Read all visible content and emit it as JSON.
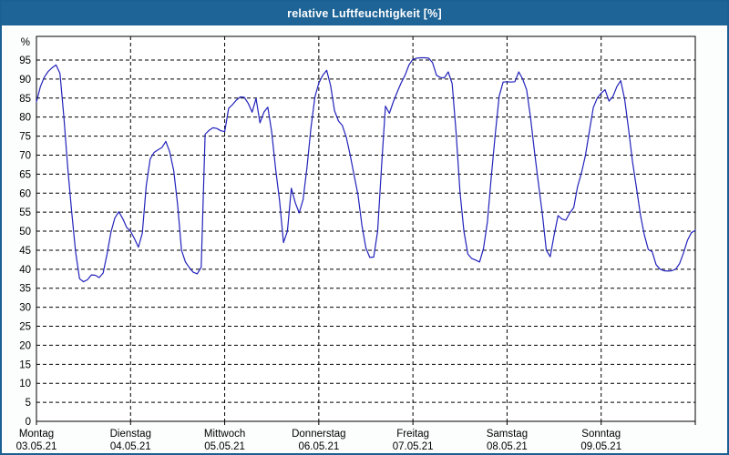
{
  "window": {
    "title": "relative Luftfeuchtigkeit [%]"
  },
  "colors": {
    "titlebar_bg": "#1e6496",
    "titlebar_text": "#ffffff",
    "frame": "#1b6092",
    "content_bg": "#fcfdfd",
    "plot_bg": "#ffffff",
    "grid": "#000000",
    "axis": "#000000",
    "label": "#000000",
    "line": "#2222bb"
  },
  "chart_data": {
    "type": "line",
    "title": "relative Luftfeuchtigkeit [%]",
    "xlabel": "",
    "ylabel": "%",
    "ylim": [
      0,
      101
    ],
    "y_ticks": [
      0,
      5,
      10,
      15,
      20,
      25,
      30,
      35,
      40,
      45,
      50,
      55,
      60,
      65,
      70,
      75,
      80,
      85,
      90,
      95
    ],
    "grid": "dashed",
    "legend": "none",
    "x_axis": {
      "points_per_day": 24,
      "days": [
        {
          "weekday": "Montag",
          "date": "03.05.21"
        },
        {
          "weekday": "Dienstag",
          "date": "04.05.21"
        },
        {
          "weekday": "Mittwoch",
          "date": "05.05.21"
        },
        {
          "weekday": "Donnerstag",
          "date": "06.05.21"
        },
        {
          "weekday": "Freitag",
          "date": "07.05.21"
        },
        {
          "weekday": "Samstag",
          "date": "08.05.21"
        },
        {
          "weekday": "Sonntag",
          "date": "09.05.21"
        }
      ]
    },
    "series": [
      {
        "name": "relative Luftfeuchtigkeit [%]",
        "values": [
          84,
          88,
          90.5,
          92,
          93,
          93.7,
          91.5,
          80,
          66.5,
          55,
          44.5,
          37.5,
          36.7,
          37.2,
          38.5,
          38.4,
          37.8,
          39,
          44,
          49.8,
          53.5,
          55.1,
          53.3,
          51,
          50,
          48,
          45.8,
          49.5,
          62,
          69,
          70.7,
          71.4,
          72,
          73.6,
          70.8,
          66,
          57,
          45,
          41.9,
          40.4,
          39.2,
          38.8,
          40.5,
          75.5,
          76.5,
          77.2,
          77,
          76.4,
          76.2,
          82.3,
          83.3,
          84.5,
          85.3,
          85.2,
          83.6,
          81.3,
          84.9,
          78.5,
          81.3,
          82.6,
          76,
          66.3,
          58,
          47,
          50,
          61.3,
          57.5,
          54.8,
          58.3,
          66.8,
          77.3,
          85.3,
          89,
          91,
          92.3,
          88.3,
          81.7,
          79,
          77.8,
          74.7,
          70,
          64.7,
          59.5,
          51.5,
          45.6,
          43.1,
          43.2,
          50,
          67,
          82.9,
          81,
          84,
          86.6,
          89,
          91,
          93.7,
          95.2,
          95.5,
          95.6,
          95.6,
          95.5,
          94.3,
          91,
          90.4,
          90.3,
          91.9,
          88.8,
          76,
          60.3,
          50,
          44,
          42.8,
          42.4,
          41.9,
          45.5,
          52.5,
          64.5,
          75.5,
          85.5,
          89.2,
          89.3,
          89.2,
          89.3,
          91.9,
          90,
          87.2,
          79.7,
          70.8,
          62.5,
          54.5,
          45,
          43.3,
          49,
          54.1,
          53.2,
          52.9,
          54.8,
          56.2,
          61.8,
          65.4,
          70,
          76.3,
          82.5,
          85,
          86.3,
          87.2,
          84.2,
          85.4,
          88,
          89.6,
          84.7,
          76.8,
          68.3,
          61.5,
          54.3,
          49,
          45.2,
          44.6,
          41.2,
          40,
          39.6,
          39.5,
          39.6,
          40,
          41.5,
          44.3,
          47.6,
          49.6,
          50.2
        ]
      }
    ]
  }
}
